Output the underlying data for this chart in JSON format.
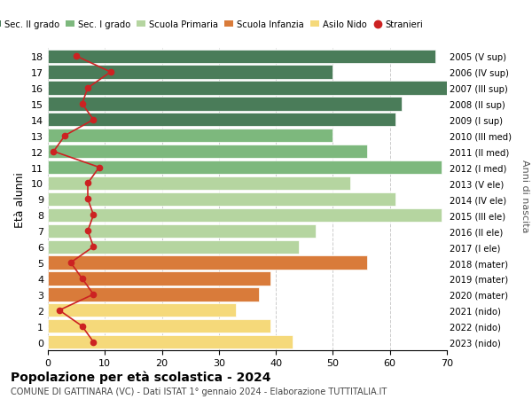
{
  "ages": [
    18,
    17,
    16,
    15,
    14,
    13,
    12,
    11,
    10,
    9,
    8,
    7,
    6,
    5,
    4,
    3,
    2,
    1,
    0
  ],
  "years": [
    "2005 (V sup)",
    "2006 (IV sup)",
    "2007 (III sup)",
    "2008 (II sup)",
    "2009 (I sup)",
    "2010 (III med)",
    "2011 (II med)",
    "2012 (I med)",
    "2013 (V ele)",
    "2014 (IV ele)",
    "2015 (III ele)",
    "2016 (II ele)",
    "2017 (I ele)",
    "2018 (mater)",
    "2019 (mater)",
    "2020 (mater)",
    "2021 (nido)",
    "2022 (nido)",
    "2023 (nido)"
  ],
  "bar_values": [
    68,
    50,
    70,
    62,
    61,
    50,
    56,
    69,
    53,
    61,
    69,
    47,
    44,
    56,
    39,
    37,
    33,
    39,
    43
  ],
  "bar_colors": [
    "#4a7c59",
    "#4a7c59",
    "#4a7c59",
    "#4a7c59",
    "#4a7c59",
    "#7db87d",
    "#7db87d",
    "#7db87d",
    "#b5d5a0",
    "#b5d5a0",
    "#b5d5a0",
    "#b5d5a0",
    "#b5d5a0",
    "#d97b3a",
    "#d97b3a",
    "#d97b3a",
    "#f5d97a",
    "#f5d97a",
    "#f5d97a"
  ],
  "stranieri_values": [
    5,
    11,
    7,
    6,
    8,
    3,
    1,
    9,
    7,
    7,
    8,
    7,
    8,
    4,
    6,
    8,
    2,
    6,
    8
  ],
  "title_bold": "Popolazione per età scolastica - 2024",
  "subtitle": "COMUNE DI GATTINARA (VC) - Dati ISTAT 1° gennaio 2024 - Elaborazione TUTTITALIA.IT",
  "ylabel": "Età alunni",
  "right_label": "Anni di nascita",
  "legend_items": [
    "Sec. II grado",
    "Sec. I grado",
    "Scuola Primaria",
    "Scuola Infanzia",
    "Asilo Nido",
    "Stranieri"
  ],
  "legend_colors": [
    "#4a7c59",
    "#7db87d",
    "#b5d5a0",
    "#d97b3a",
    "#f5d97a",
    "#cc2222"
  ],
  "xlim": [
    0,
    70
  ],
  "background_color": "#ffffff",
  "stranieri_color": "#cc2222",
  "grid_color": "#cccccc"
}
